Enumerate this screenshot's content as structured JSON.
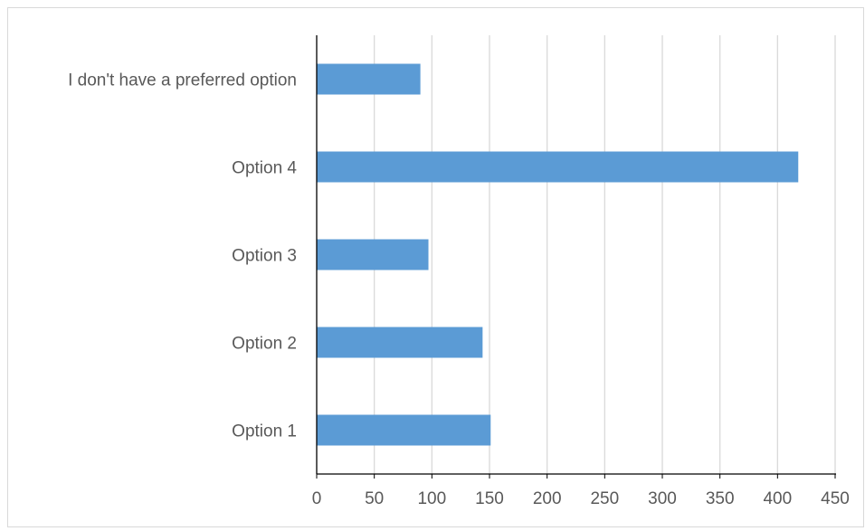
{
  "chart_data": {
    "type": "bar",
    "orientation": "horizontal",
    "categories": [
      "I don't have a preferred option",
      "Option 4",
      "Option 3",
      "Option 2",
      "Option 1"
    ],
    "values": [
      90,
      418,
      97,
      144,
      151
    ],
    "title": "",
    "xlabel": "",
    "ylabel": "",
    "xlim": [
      0,
      450
    ],
    "xticks": [
      "0",
      "50",
      "100",
      "150",
      "200",
      "250",
      "300",
      "350",
      "400",
      "450"
    ],
    "grid": "vertical",
    "legend": "none",
    "bar_color": "#5b9bd5",
    "grid_color": "#d9d9d9",
    "axis_color": "#000000",
    "text_color": "#595959"
  }
}
